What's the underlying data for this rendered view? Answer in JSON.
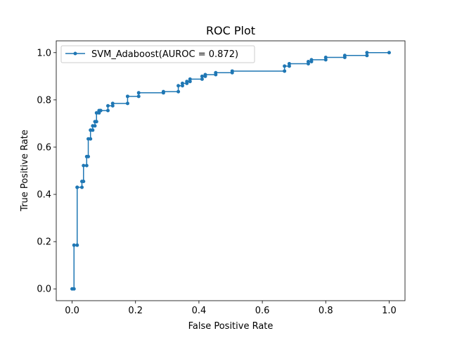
{
  "chart_data": {
    "type": "line",
    "title": "ROC Plot",
    "xlabel": "False Positive Rate",
    "ylabel": "True Positive Rate",
    "xlim": [
      -0.05,
      1.05
    ],
    "ylim": [
      -0.05,
      1.05
    ],
    "x_ticks": [
      "0.0",
      "0.2",
      "0.4",
      "0.6",
      "0.8",
      "1.0"
    ],
    "y_ticks": [
      "0.0",
      "0.2",
      "0.4",
      "0.6",
      "0.8",
      "1.0"
    ],
    "grid": false,
    "legend_position": "upper-left",
    "colors": {
      "series": "#1f77b4"
    },
    "series": [
      {
        "name": "SVM_Adaboost(AUROC = 0.872)",
        "marker": "dot",
        "step": "vertical-then-horizontal",
        "x": [
          0.0,
          0.006,
          0.006,
          0.016,
          0.016,
          0.016,
          0.031,
          0.031,
          0.036,
          0.036,
          0.046,
          0.046,
          0.051,
          0.051,
          0.058,
          0.058,
          0.065,
          0.065,
          0.072,
          0.072,
          0.077,
          0.077,
          0.085,
          0.085,
          0.09,
          0.09,
          0.113,
          0.113,
          0.128,
          0.128,
          0.175,
          0.175,
          0.21,
          0.21,
          0.288,
          0.288,
          0.335,
          0.335,
          0.348,
          0.348,
          0.362,
          0.362,
          0.372,
          0.372,
          0.41,
          0.41,
          0.42,
          0.42,
          0.453,
          0.453,
          0.505,
          0.505,
          0.67,
          0.67,
          0.685,
          0.685,
          0.745,
          0.745,
          0.755,
          0.755,
          0.8,
          0.8,
          0.86,
          0.86,
          0.93,
          0.93,
          1.0
        ],
        "y": [
          0.0,
          0.0,
          0.185,
          0.185,
          0.43,
          0.43,
          0.43,
          0.455,
          0.455,
          0.522,
          0.522,
          0.56,
          0.56,
          0.635,
          0.635,
          0.672,
          0.672,
          0.69,
          0.69,
          0.708,
          0.708,
          0.745,
          0.745,
          0.755,
          0.755,
          0.755,
          0.755,
          0.775,
          0.775,
          0.785,
          0.785,
          0.815,
          0.815,
          0.83,
          0.83,
          0.835,
          0.835,
          0.86,
          0.86,
          0.87,
          0.87,
          0.878,
          0.878,
          0.888,
          0.888,
          0.9,
          0.9,
          0.907,
          0.907,
          0.915,
          0.915,
          0.922,
          0.922,
          0.943,
          0.943,
          0.953,
          0.953,
          0.962,
          0.962,
          0.97,
          0.97,
          0.98,
          0.98,
          0.988,
          0.988,
          1.0,
          1.0
        ]
      }
    ]
  }
}
